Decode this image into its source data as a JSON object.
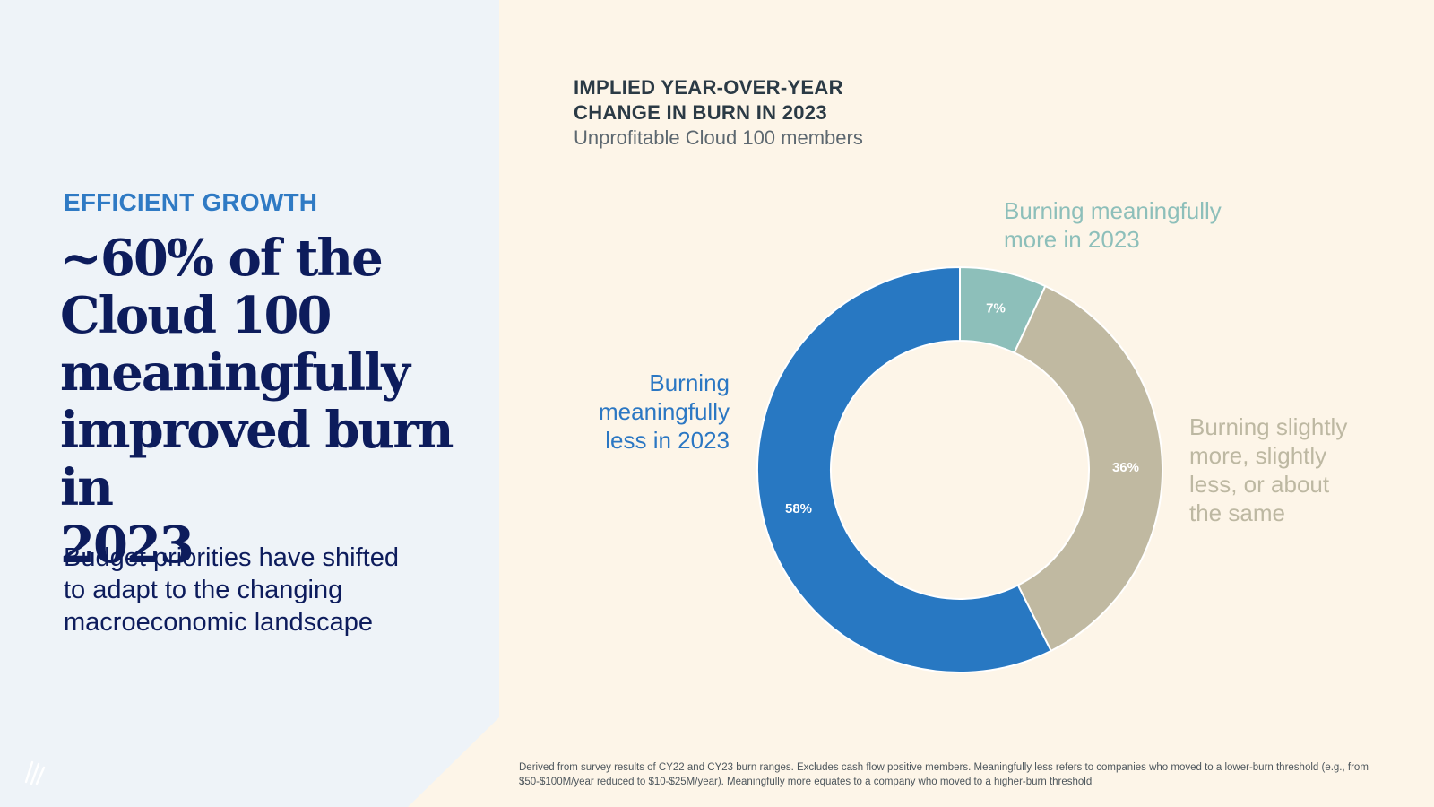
{
  "left": {
    "eyebrow": "EFFICIENT GROWTH",
    "headline_lines": [
      "~60% of the",
      "Cloud 100",
      "meaningfully",
      "improved burn in",
      "2023"
    ],
    "subhead_lines": [
      "Budget priorities have shifted",
      "to adapt to the changing",
      "macroeconomic landscape"
    ]
  },
  "chart_title_lines": [
    "IMPLIED YEAR-OVER-YEAR",
    "CHANGE IN BURN IN 2023"
  ],
  "chart_subtitle": "Unprofitable Cloud 100 members",
  "callouts": {
    "more": [
      "Burning meaningfully",
      "more in 2023"
    ],
    "less": [
      "Burning",
      "meaningfully",
      "less in 2023"
    ],
    "same": [
      "Burning slightly",
      "more, slightly",
      "less, or about",
      "the same"
    ]
  },
  "footnote": "Derived from survey results of CY22 and CY23 burn ranges. Excludes cash flow positive members. Meaningfully less refers to companies who moved to a lower-burn threshold (e.g., from $50-$100M/year reduced to $10-$25M/year). Meaningfully more equates to a company who moved to a higher-burn threshold",
  "colors": {
    "more": "#8dbfba",
    "same": "#c0b9a1",
    "less": "#2878c2",
    "headline": "#0d1c5c",
    "accent": "#2f7ac4"
  },
  "chart_data": {
    "type": "pie",
    "donut": true,
    "title": "IMPLIED YEAR-OVER-YEAR CHANGE IN BURN IN 2023",
    "subtitle": "Unprofitable Cloud 100 members",
    "slices": [
      {
        "label": "Burning meaningfully more in 2023",
        "value": 7,
        "value_label": "7%"
      },
      {
        "label": "Burning slightly more, slightly less, or about the same",
        "value": 36,
        "value_label": "36%"
      },
      {
        "label": "Burning meaningfully less in 2023",
        "value": 58,
        "value_label": "58%"
      }
    ]
  }
}
